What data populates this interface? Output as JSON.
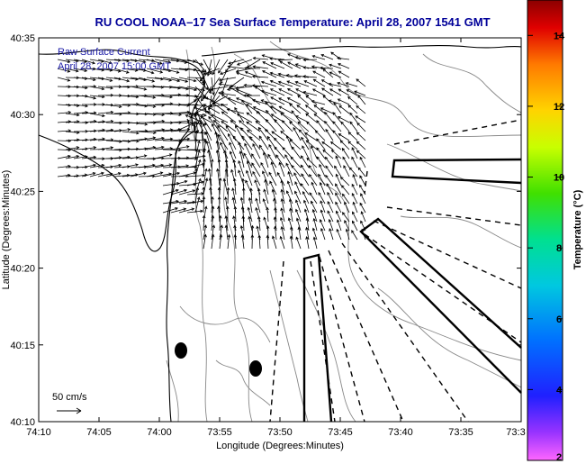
{
  "chart_data": {
    "type": "map",
    "title": "RU COOL  NOAA–17  Sea Surface Temperature:  April 28, 2007 1541 GMT",
    "xlabel": "Longitude (Degrees:Minutes)",
    "ylabel": "Latitude (Degrees:Minutes)",
    "x_tick_labels": [
      "74:10",
      "74:05",
      "74:00",
      "73:55",
      "73:50",
      "73:45",
      "73:40",
      "73:35",
      "73:3"
    ],
    "y_tick_labels": [
      "40:35",
      "40:30",
      "40:25",
      "40:20",
      "40:15",
      "40:10"
    ],
    "legend": [
      "Raw Surface Current",
      "April 28, 2007 15:00 GMT"
    ],
    "scale_label": "50 cm/s",
    "colorbar": {
      "label": "Temperature (°C)",
      "ticks": [
        14,
        12,
        10,
        8,
        6,
        4,
        2
      ],
      "range": [
        2,
        15
      ]
    },
    "markers": [
      {
        "lon": "73:58.8",
        "lat": "40:14.6"
      },
      {
        "lon": "73:52.5",
        "lat": "40:13.5"
      }
    ]
  },
  "colors": {
    "title": "#000099",
    "legend_text": "#1a1aa6",
    "land_contour": "#000000",
    "bathymetry": "#888888"
  }
}
